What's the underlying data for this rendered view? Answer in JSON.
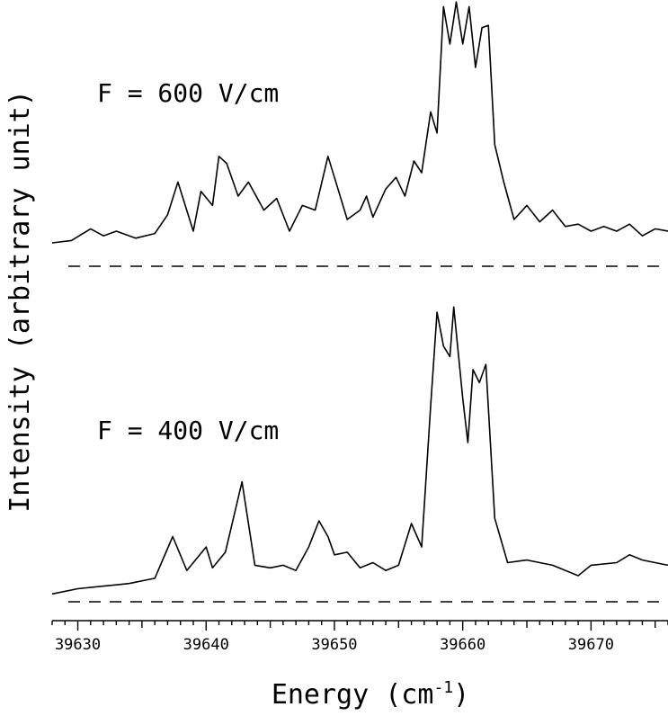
{
  "chart_data": {
    "type": "line",
    "xlabel": "Energy (cm",
    "xlabel_sup": "-1",
    "xlabel_close": ")",
    "ylabel": "Intensity (arbitrary unit)",
    "xlim": [
      39628,
      39676
    ],
    "x_ticks": [
      39630,
      39640,
      39650,
      39660,
      39670
    ],
    "grid": false,
    "legend": "none",
    "baseline_style": "dashed",
    "series": [
      {
        "name": "F = 600 V/cm",
        "x": [
          39628,
          39629.5,
          39631,
          39632,
          39633,
          39634.5,
          39636,
          39637,
          39637.8,
          39639,
          39639.6,
          39640.5,
          39641,
          39641.6,
          39642.5,
          39643.3,
          39644.5,
          39645.5,
          39646.5,
          39647.5,
          39648.5,
          39649.5,
          39650,
          39651,
          39652,
          39652.5,
          39653,
          39654,
          39654.8,
          39655.5,
          39656.2,
          39656.8,
          39657.5,
          39658,
          39658.5,
          39659,
          39659.5,
          39660,
          39660.5,
          39661,
          39661.5,
          39662,
          39662.5,
          39663.2,
          39664,
          39665,
          39666,
          39667,
          39668,
          39669,
          39670,
          39671,
          39672,
          39673,
          39674,
          39675,
          39676
        ],
        "y": [
          1.0,
          1.1,
          1.6,
          1.3,
          1.5,
          1.2,
          1.4,
          2.2,
          3.6,
          1.5,
          3.2,
          2.6,
          4.7,
          4.4,
          3.0,
          3.6,
          2.4,
          2.9,
          1.5,
          2.6,
          2.4,
          4.7,
          3.8,
          2.0,
          2.4,
          3.0,
          2.1,
          3.3,
          3.8,
          3.0,
          4.5,
          4.0,
          6.6,
          5.7,
          11.1,
          9.5,
          11.3,
          9.5,
          11.1,
          8.5,
          10.2,
          10.3,
          5.2,
          3.6,
          2.0,
          2.6,
          1.9,
          2.4,
          1.7,
          1.8,
          1.5,
          1.7,
          1.5,
          1.8,
          1.3,
          1.6,
          1.5
        ]
      },
      {
        "name": "F = 400 V/cm",
        "x": [
          39628,
          39630,
          39632,
          39634,
          39636,
          39637.4,
          39638.5,
          39640,
          39640.5,
          39641.5,
          39642.8,
          39643.8,
          39645,
          39646,
          39647,
          39648,
          39648.8,
          39649.5,
          39650,
          39651,
          39652,
          39653,
          39654,
          39655,
          39656,
          39656.8,
          39657.5,
          39658,
          39658.5,
          39659,
          39659.3,
          39660,
          39660.4,
          39660.8,
          39661.3,
          39661.8,
          39662.5,
          39663.5,
          39665,
          39667,
          39669,
          39670,
          39672,
          39673,
          39674,
          39676
        ],
        "y": [
          0.3,
          0.5,
          0.6,
          0.7,
          0.9,
          2.5,
          1.2,
          2.1,
          1.3,
          1.9,
          4.6,
          1.4,
          1.3,
          1.4,
          1.2,
          2.1,
          3.1,
          2.5,
          1.8,
          1.9,
          1.3,
          1.5,
          1.2,
          1.4,
          3.0,
          2.1,
          7.5,
          11.1,
          9.8,
          9.4,
          11.3,
          7.8,
          6.1,
          8.9,
          8.4,
          9.1,
          3.2,
          1.5,
          1.6,
          1.4,
          1.0,
          1.4,
          1.5,
          1.8,
          1.6,
          1.4
        ]
      }
    ]
  }
}
